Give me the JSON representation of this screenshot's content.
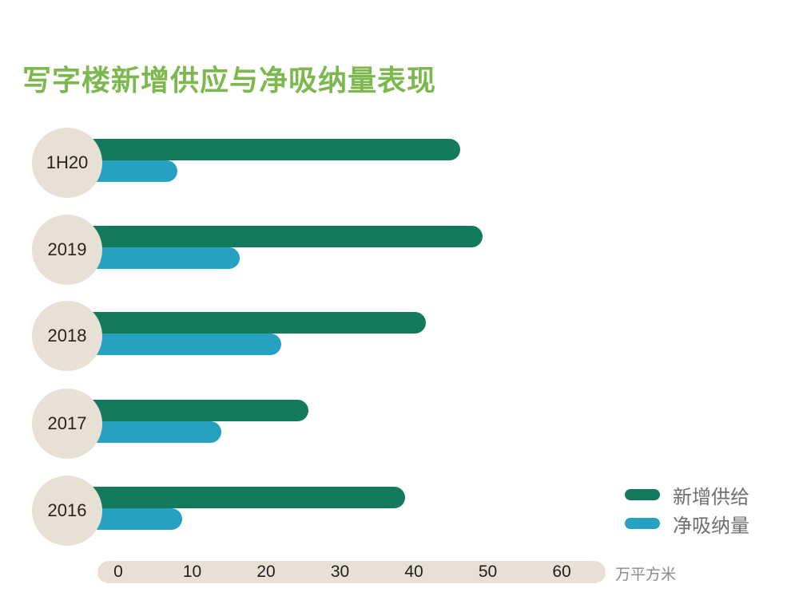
{
  "title": "写字楼新增供应与净吸纳量表现",
  "colors": {
    "title": "#7cb84e",
    "supply": "#137a5e",
    "absorb": "#27a0c1",
    "circle": "#e6e1d4"
  },
  "legend": [
    {
      "label": "新增供给",
      "color": "#137a5e"
    },
    {
      "label": "净吸纳量",
      "color": "#27a0c1"
    }
  ],
  "axis": {
    "ticks": [
      "0",
      "10",
      "20",
      "30",
      "40",
      "50",
      "60"
    ],
    "unit": "万平方米"
  },
  "chart_data": {
    "type": "bar",
    "orientation": "horizontal",
    "title": "写字楼新增供应与净吸纳量表现",
    "categories": [
      "1H20",
      "2019",
      "2018",
      "2017",
      "2016"
    ],
    "series": [
      {
        "name": "新增供给",
        "values": [
          46.3,
          49.3,
          41.6,
          25.7,
          38.8
        ]
      },
      {
        "name": "净吸纳量",
        "values": [
          8.0,
          16.4,
          22.0,
          13.9,
          8.6
        ]
      }
    ],
    "xlabel": "万平方米",
    "ylabel": "",
    "xlim": [
      0,
      60
    ],
    "xticks": [
      0,
      10,
      20,
      30,
      40,
      50,
      60
    ],
    "grid": false,
    "legend_position": "bottom-right"
  }
}
